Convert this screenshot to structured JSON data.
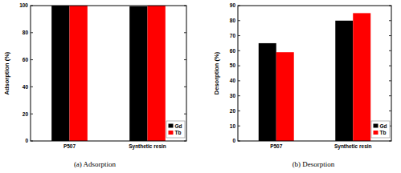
{
  "chart_data": [
    {
      "type": "bar",
      "title": "(a)  Adsorption",
      "y_label": "Adsorption (%)",
      "categories": [
        "P507",
        "Synthetic resin"
      ],
      "series": [
        {
          "name": "Gd",
          "color": "#000000",
          "values": [
            100,
            99.5
          ]
        },
        {
          "name": "Tb",
          "color": "#ff0000",
          "values": [
            100,
            100
          ]
        }
      ],
      "ylim": [
        0,
        100
      ],
      "yticks": [
        0,
        20,
        40,
        60,
        80,
        100
      ],
      "grid": false,
      "legend": "lower right"
    },
    {
      "type": "bar",
      "title": "(b)  Desorption",
      "y_label": "Desorption (%)",
      "categories": [
        "P507",
        "Synthetic resin"
      ],
      "series": [
        {
          "name": "Gd",
          "color": "#000000",
          "values": [
            65,
            80
          ]
        },
        {
          "name": "Tb",
          "color": "#ff0000",
          "values": [
            59,
            85
          ]
        }
      ],
      "ylim": [
        0,
        90
      ],
      "yticks": [
        0,
        10,
        20,
        30,
        40,
        50,
        60,
        70,
        80,
        90
      ],
      "grid": false,
      "legend": "lower right"
    }
  ]
}
